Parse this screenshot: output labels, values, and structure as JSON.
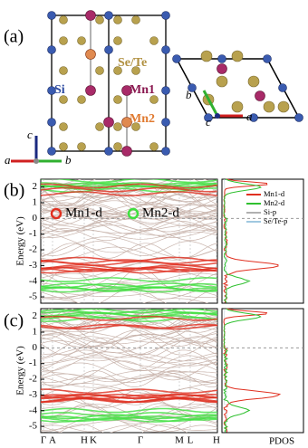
{
  "panel_a": {
    "label": "(a)",
    "atoms": {
      "se_te": "Se/Te",
      "si": "Si",
      "mn1": "Mn1",
      "mn2": "Mn2"
    },
    "side_axes": {
      "up": "c",
      "left": "a",
      "right": "b"
    },
    "top_axes": {
      "up": "b",
      "out": "c",
      "right": "a"
    }
  },
  "panel_b": {
    "label": "(b)",
    "ylabel": "Energy (eV)",
    "yticks": [
      2,
      1,
      0,
      -1,
      -2,
      -3,
      -4,
      -5
    ],
    "legend": [
      "Mn1-d",
      "Mn2-d"
    ],
    "pdos_legend": [
      "Mn1-d",
      "Mn2-d",
      "Si-p",
      "Se/Te-p"
    ]
  },
  "panel_c": {
    "label": "(c)",
    "ylabel": "Energy (eV)",
    "yticks": [
      2,
      1,
      0,
      -1,
      -2,
      -3,
      -4,
      -5
    ],
    "kpoints": [
      "Γ",
      "A",
      "H",
      "K",
      "Γ",
      "M",
      "L",
      "H"
    ],
    "pdos_label": "PDOS"
  }
}
